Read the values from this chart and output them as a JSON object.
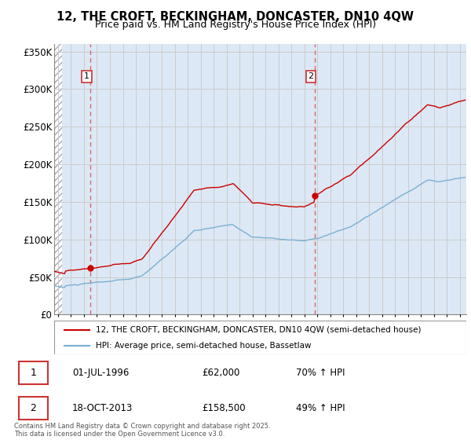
{
  "title_line1": "12, THE CROFT, BECKINGHAM, DONCASTER, DN10 4QW",
  "title_line2": "Price paid vs. HM Land Registry's House Price Index (HPI)",
  "legend_entry1": "12, THE CROFT, BECKINGHAM, DONCASTER, DN10 4QW (semi-detached house)",
  "legend_entry2": "HPI: Average price, semi-detached house, Bassetlaw",
  "purchase1_date": "01-JUL-1996",
  "purchase1_price": "£62,000",
  "purchase1_hpi": "70% ↑ HPI",
  "purchase2_date": "18-OCT-2013",
  "purchase2_price": "£158,500",
  "purchase2_hpi": "49% ↑ HPI",
  "footer": "Contains HM Land Registry data © Crown copyright and database right 2025.\nThis data is licensed under the Open Government Licence v3.0.",
  "purchase1_year": 1996.5,
  "purchase1_value": 62000,
  "purchase2_year": 2013.8,
  "purchase2_value": 158500,
  "red_color": "#cc0000",
  "blue_color": "#7ab0d4",
  "grid_color": "#cccccc",
  "background_plot": "#dce8f5",
  "ylim": [
    0,
    360000
  ],
  "xlim_start": 1993.7,
  "xlim_end": 2025.5,
  "hatch_end": 1994.3
}
